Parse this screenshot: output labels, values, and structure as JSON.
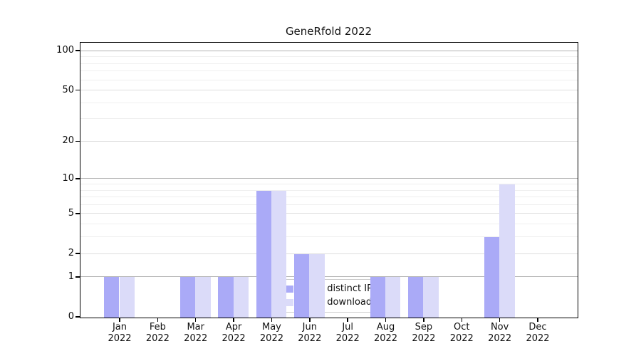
{
  "colors": {
    "distinct_ips": "#aaaaf7",
    "downloads": "#dbdbf9",
    "grid_power10": "#b2b2b2",
    "grid_major": "#dedede",
    "grid_minor": "#efefef",
    "spine": "#000000",
    "legend_border": "#cccccc"
  },
  "legend": {
    "items": [
      {
        "label": "Nb of distinct IPs",
        "color_key": "distinct_ips"
      },
      {
        "label": "Nb of downloads",
        "color_key": "downloads"
      }
    ]
  },
  "chart_data": {
    "type": "bar",
    "title": "GeneRfold 2022",
    "categories": [
      "Jan 2022",
      "Feb 2022",
      "Mar 2022",
      "Apr 2022",
      "May 2022",
      "Jun 2022",
      "Jul 2022",
      "Aug 2022",
      "Sep 2022",
      "Oct 2022",
      "Nov 2022",
      "Dec 2022"
    ],
    "series": [
      {
        "name": "Nb of distinct IPs",
        "color_key": "distinct_ips",
        "values": [
          1,
          0,
          1,
          1,
          8,
          2,
          0,
          1,
          1,
          0,
          3,
          0
        ]
      },
      {
        "name": "Nb of downloads",
        "color_key": "downloads",
        "values": [
          1,
          0,
          1,
          1,
          8,
          2,
          0,
          1,
          1,
          0,
          9,
          0
        ]
      }
    ],
    "xlabel": "",
    "ylabel": "",
    "y_ticks": [
      0,
      1,
      2,
      5,
      10,
      20,
      50,
      100
    ],
    "y_minor_gridlines": [
      3,
      4,
      6,
      7,
      8,
      9,
      30,
      40,
      60,
      70,
      80,
      90
    ],
    "y_scale": "log1p",
    "ylim": [
      0,
      115
    ],
    "grid": "on",
    "legend_position": "lower center"
  }
}
